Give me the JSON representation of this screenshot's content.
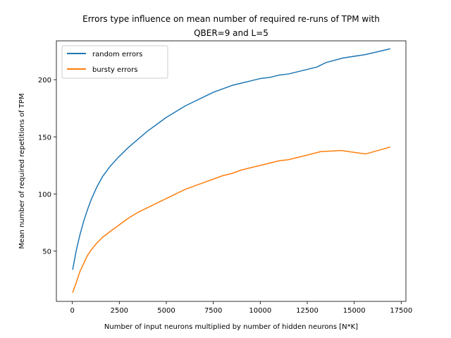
{
  "chart_data": {
    "type": "line",
    "title_lines": [
      "Errors type influence on mean number of required re-runs of TPM with",
      "QBER=9 and L=5"
    ],
    "xlabel": "Number of input neurons multiplied by number of hidden neurons [N*K]",
    "ylabel": "Mean number of required repetitions of TPM",
    "xlim": [
      -850,
      17750
    ],
    "ylim": [
      6,
      234
    ],
    "xticks": [
      0,
      2500,
      5000,
      7500,
      10000,
      12500,
      15000,
      17500
    ],
    "xtick_labels": [
      "0",
      "2500",
      "5000",
      "7500",
      "10000",
      "12500",
      "15000",
      "17500"
    ],
    "yticks": [
      50,
      100,
      150,
      200
    ],
    "ytick_labels": [
      "50",
      "100",
      "150",
      "200"
    ],
    "grid": false,
    "legend_position": "top-left",
    "series": [
      {
        "name": "random errors",
        "color": "#1f77b4",
        "points": [
          [
            20,
            34
          ],
          [
            200,
            50
          ],
          [
            400,
            64
          ],
          [
            600,
            76
          ],
          [
            800,
            86
          ],
          [
            1000,
            95
          ],
          [
            1300,
            106
          ],
          [
            1600,
            115
          ],
          [
            2000,
            124
          ],
          [
            2500,
            133
          ],
          [
            3000,
            141
          ],
          [
            3500,
            148
          ],
          [
            4000,
            155
          ],
          [
            4500,
            161
          ],
          [
            5000,
            167
          ],
          [
            5500,
            172
          ],
          [
            6000,
            177
          ],
          [
            6500,
            181
          ],
          [
            7000,
            185
          ],
          [
            7500,
            189
          ],
          [
            8000,
            192
          ],
          [
            8500,
            195
          ],
          [
            9000,
            197
          ],
          [
            9500,
            199
          ],
          [
            10000,
            201
          ],
          [
            10500,
            202
          ],
          [
            11000,
            204
          ],
          [
            11500,
            205
          ],
          [
            12000,
            207
          ],
          [
            12500,
            209
          ],
          [
            13000,
            211
          ],
          [
            13500,
            215
          ],
          [
            14400,
            219
          ],
          [
            15600,
            222
          ],
          [
            16900,
            227
          ]
        ]
      },
      {
        "name": "bursty errors",
        "color": "#ff7f0e",
        "points": [
          [
            20,
            14
          ],
          [
            200,
            22
          ],
          [
            400,
            32
          ],
          [
            600,
            39
          ],
          [
            800,
            46
          ],
          [
            1000,
            51
          ],
          [
            1300,
            57
          ],
          [
            1600,
            62
          ],
          [
            2000,
            67
          ],
          [
            2500,
            73
          ],
          [
            3000,
            79
          ],
          [
            3500,
            84
          ],
          [
            4000,
            88
          ],
          [
            4500,
            92
          ],
          [
            5000,
            96
          ],
          [
            5500,
            100
          ],
          [
            6000,
            104
          ],
          [
            6500,
            107
          ],
          [
            7000,
            110
          ],
          [
            7500,
            113
          ],
          [
            8000,
            116
          ],
          [
            8500,
            118
          ],
          [
            9000,
            121
          ],
          [
            9500,
            123
          ],
          [
            10000,
            125
          ],
          [
            10500,
            127
          ],
          [
            11000,
            129
          ],
          [
            11500,
            130
          ],
          [
            12000,
            132
          ],
          [
            12500,
            134
          ],
          [
            13200,
            137
          ],
          [
            14300,
            138
          ],
          [
            15600,
            135
          ],
          [
            16900,
            141
          ]
        ]
      }
    ]
  }
}
